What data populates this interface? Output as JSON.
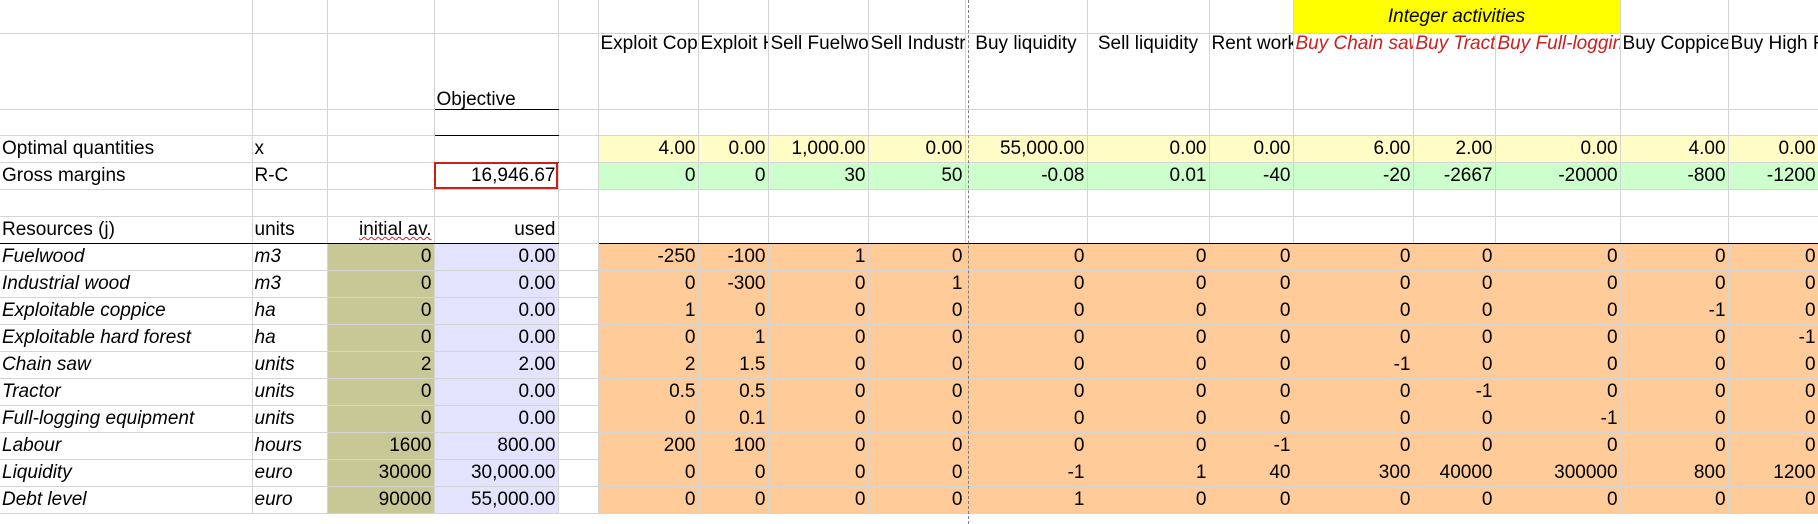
{
  "integer_band_label": "Integer activities",
  "objective_label": "Objective",
  "activities": [
    {
      "label": "Exploit Coppices",
      "integer": false
    },
    {
      "label": "Exploit High Forest",
      "integer": false
    },
    {
      "label": "Sell Fuelwood",
      "integer": false
    },
    {
      "label": "Sell Industrial Wood",
      "integer": false
    },
    {
      "label": "Buy liquidity",
      "integer": false
    },
    {
      "label": "Sell liquidity",
      "integer": false
    },
    {
      "label": "Rent workers",
      "integer": false
    },
    {
      "label": "Buy Chain saw",
      "integer": true
    },
    {
      "label": "Buy Tractor",
      "integer": true
    },
    {
      "label": "Buy Full-logging eq.",
      "integer": true
    },
    {
      "label": "Buy Coppices stumpage",
      "integer": false
    },
    {
      "label": "Buy High Forest stumpage",
      "integer": false
    }
  ],
  "optimal": {
    "label": "Optimal quantities",
    "symbol": "x",
    "values": [
      "4.00",
      "0.00",
      "1,000.00",
      "0.00",
      "55,000.00",
      "0.00",
      "0.00",
      "6.00",
      "2.00",
      "0.00",
      "4.00",
      "0.00"
    ]
  },
  "gross": {
    "label": "Gross margins",
    "symbol": "R-C",
    "objective_value": "16,946.67",
    "values": [
      "0",
      "0",
      "30",
      "50",
      "-0.08",
      "0.01",
      "-40",
      "-20",
      "-2667",
      "-20000",
      "-800",
      "-1200"
    ]
  },
  "resources_header": {
    "label": "Resources (j)",
    "units": "units",
    "initial": "initial av.",
    "used": "used"
  },
  "resources": [
    {
      "name": "Fuelwood",
      "unit": "m3",
      "initial": "0",
      "used": "0.00",
      "coef": [
        "-250",
        "-100",
        "1",
        "0",
        "0",
        "0",
        "0",
        "0",
        "0",
        "0",
        "0",
        "0"
      ]
    },
    {
      "name": "Industrial wood",
      "unit": "m3",
      "initial": "0",
      "used": "0.00",
      "coef": [
        "0",
        "-300",
        "0",
        "1",
        "0",
        "0",
        "0",
        "0",
        "0",
        "0",
        "0",
        "0"
      ]
    },
    {
      "name": "Exploitable coppice",
      "unit": "ha",
      "initial": "0",
      "used": "0.00",
      "coef": [
        "1",
        "0",
        "0",
        "0",
        "0",
        "0",
        "0",
        "0",
        "0",
        "0",
        "-1",
        "0"
      ]
    },
    {
      "name": "Exploitable hard forest",
      "unit": "ha",
      "initial": "0",
      "used": "0.00",
      "coef": [
        "0",
        "1",
        "0",
        "0",
        "0",
        "0",
        "0",
        "0",
        "0",
        "0",
        "0",
        "-1"
      ]
    },
    {
      "name": "Chain saw",
      "unit": "units",
      "initial": "2",
      "used": "2.00",
      "coef": [
        "2",
        "1.5",
        "0",
        "0",
        "0",
        "0",
        "0",
        "-1",
        "0",
        "0",
        "0",
        "0"
      ]
    },
    {
      "name": "Tractor",
      "unit": "units",
      "initial": "0",
      "used": "0.00",
      "coef": [
        "0.5",
        "0.5",
        "0",
        "0",
        "0",
        "0",
        "0",
        "0",
        "-1",
        "0",
        "0",
        "0"
      ]
    },
    {
      "name": "Full-logging equipment",
      "unit": "units",
      "initial": "0",
      "used": "0.00",
      "coef": [
        "0",
        "0.1",
        "0",
        "0",
        "0",
        "0",
        "0",
        "0",
        "0",
        "-1",
        "0",
        "0"
      ]
    },
    {
      "name": "Labour",
      "unit": "hours",
      "initial": "1600",
      "used": "800.00",
      "coef": [
        "200",
        "100",
        "0",
        "0",
        "0",
        "0",
        "-1",
        "0",
        "0",
        "0",
        "0",
        "0"
      ]
    },
    {
      "name": "Liquidity",
      "unit": "euro",
      "initial": "30000",
      "used": "30,000.00",
      "coef": [
        "0",
        "0",
        "0",
        "0",
        "-1",
        "1",
        "40",
        "300",
        "40000",
        "300000",
        "800",
        "1200"
      ]
    },
    {
      "name": "Debt level",
      "unit": "euro",
      "initial": "90000",
      "used": "55,000.00",
      "coef": [
        "0",
        "0",
        "0",
        "0",
        "1",
        "0",
        "0",
        "0",
        "0",
        "0",
        "0",
        "0"
      ]
    }
  ],
  "colors": {
    "optimal_row": "#fffcc6",
    "gross_row": "#ccffcc",
    "matrix": "#ffcc99",
    "initial_col": "#c8c896",
    "used_col": "#e3e3fd",
    "integer_band": "#ffff00",
    "integer_text": "#c9211e"
  }
}
